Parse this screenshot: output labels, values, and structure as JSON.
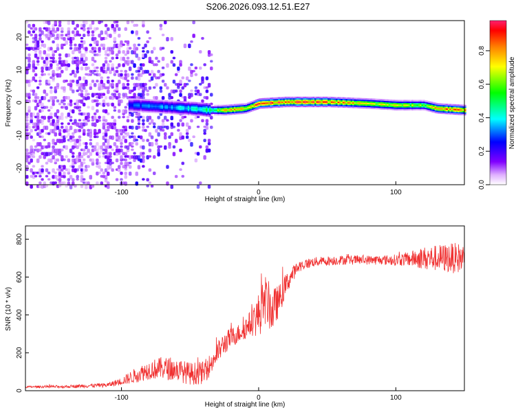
{
  "title": "S206.2026.093.12.51.E27",
  "chart_data": [
    {
      "type": "heatmap",
      "name": "spectrogram",
      "xlabel": "Height of straight line (km)",
      "ylabel": "Frequency (Hz)",
      "xlim": [
        -170,
        150
      ],
      "ylim": [
        -25,
        25
      ],
      "xticks": [
        "-100",
        "0",
        "100"
      ],
      "yticks": [
        "20",
        "10",
        "0",
        "-10",
        "-20"
      ],
      "colorbar": {
        "label": "Normalized spectral amplitude",
        "range": [
          0,
          0.98
        ],
        "ticks": [
          "0.0",
          "0.2",
          "0.4",
          "0.6",
          "0.8"
        ]
      },
      "ridge": {
        "x": [
          -90,
          -70,
          -50,
          -35,
          -25,
          -10,
          0,
          20,
          50,
          80,
          100,
          120,
          130,
          150
        ],
        "freq": [
          -0.5,
          -1.0,
          -1.5,
          -2.0,
          -2.0,
          -1.5,
          0.0,
          0.5,
          0.5,
          0.0,
          -0.5,
          -0.5,
          -1.5,
          -2.0
        ],
        "peak_amplitude": [
          0.3,
          0.35,
          0.4,
          0.5,
          0.8,
          0.75,
          0.9,
          0.9,
          0.85,
          0.7,
          0.7,
          0.6,
          0.85,
          0.8
        ]
      },
      "diffuse_region": {
        "x_range": [
          -170,
          -35
        ],
        "freq_range": [
          -25,
          25
        ],
        "amplitude": 0.1
      }
    },
    {
      "type": "line",
      "name": "snr",
      "xlabel": "Height of straight line (km)",
      "ylabel": "SNR (10 * v/v)",
      "xlim": [
        -170,
        150
      ],
      "ylim": [
        0,
        870
      ],
      "xticks": [
        "-100",
        "0",
        "100"
      ],
      "yticks": [
        "0",
        "200",
        "400",
        "600",
        "800"
      ],
      "series": [
        {
          "name": "SNR",
          "color": "#f03030",
          "x": [
            -170,
            -140,
            -110,
            -100,
            -90,
            -80,
            -70,
            -60,
            -50,
            -40,
            -35,
            -30,
            -25,
            -20,
            -15,
            -10,
            -5,
            0,
            5,
            10,
            15,
            20,
            25,
            30,
            40,
            50,
            60,
            70,
            80,
            90,
            100,
            110,
            120,
            130,
            140,
            150
          ],
          "y": [
            20,
            22,
            30,
            50,
            80,
            110,
            120,
            110,
            90,
            95,
            140,
            200,
            250,
            280,
            300,
            330,
            360,
            400,
            480,
            420,
            480,
            560,
            620,
            660,
            680,
            685,
            690,
            690,
            690,
            690,
            690,
            695,
            700,
            700,
            700,
            700
          ],
          "noise": [
            5,
            8,
            12,
            20,
            40,
            50,
            60,
            60,
            60,
            60,
            60,
            60,
            60,
            55,
            50,
            60,
            70,
            120,
            130,
            120,
            80,
            60,
            40,
            30,
            25,
            25,
            25,
            25,
            25,
            25,
            30,
            40,
            60,
            70,
            80,
            80
          ]
        }
      ]
    }
  ]
}
